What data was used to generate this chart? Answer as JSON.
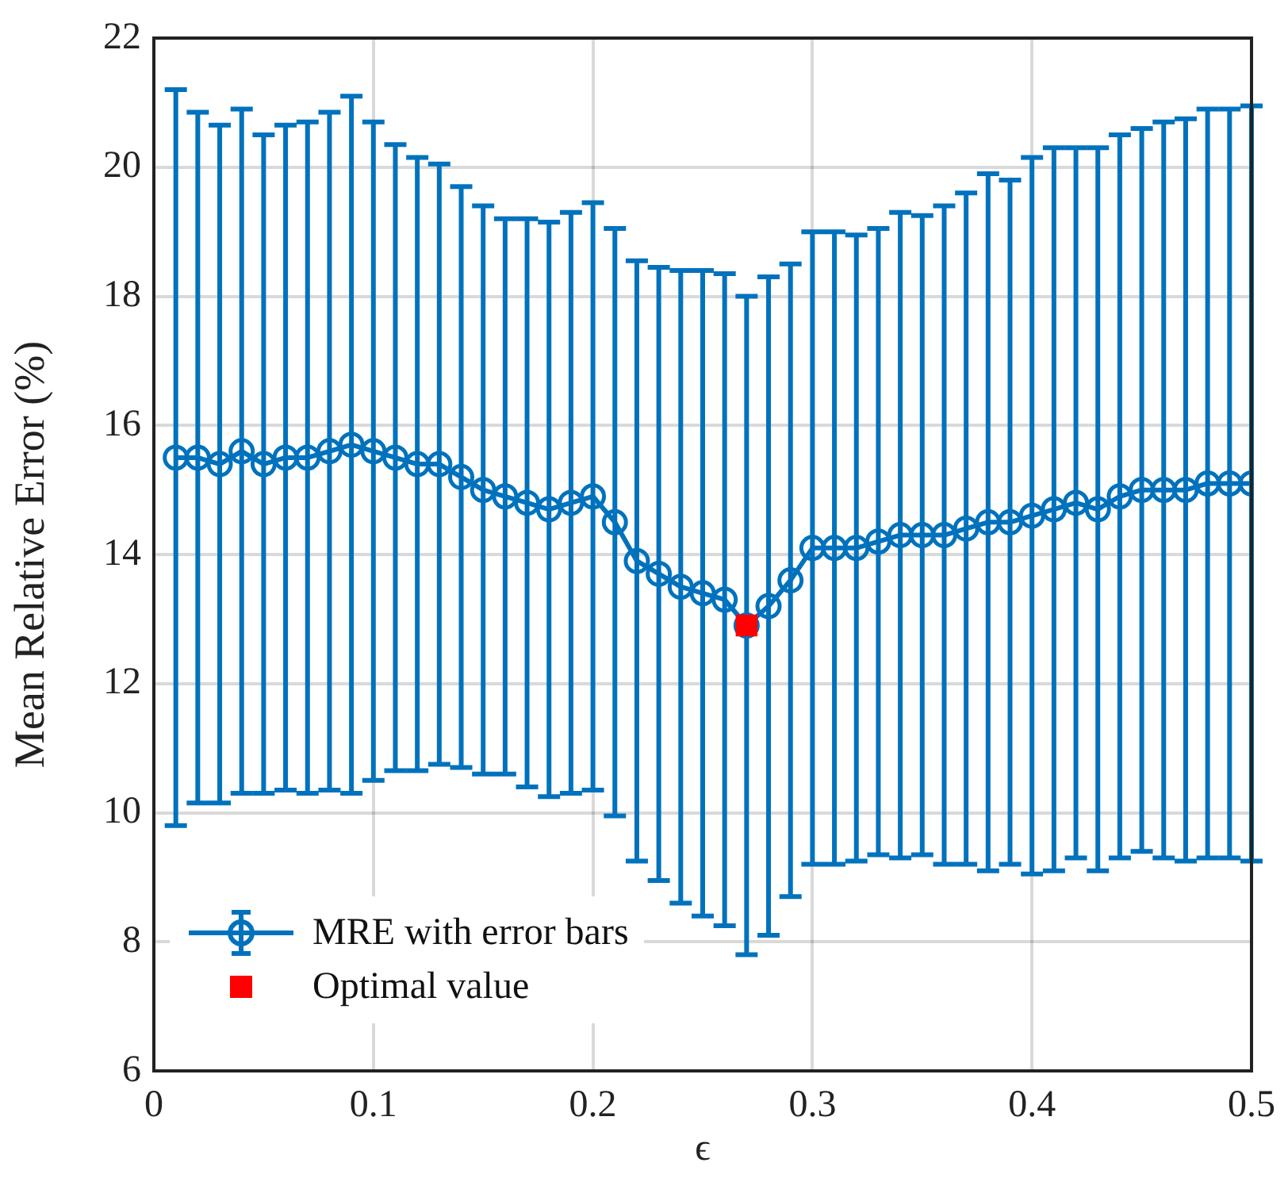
{
  "chart_data": {
    "type": "line",
    "xlabel": "ϵ",
    "ylabel": "Mean Relative Error (%)",
    "x": [
      0.01,
      0.02,
      0.03,
      0.04,
      0.05,
      0.06,
      0.07,
      0.08,
      0.09,
      0.1,
      0.11,
      0.12,
      0.13,
      0.14,
      0.15,
      0.16,
      0.17,
      0.18,
      0.19,
      0.2,
      0.21,
      0.22,
      0.23,
      0.24,
      0.25,
      0.26,
      0.27,
      0.28,
      0.29,
      0.3,
      0.31,
      0.32,
      0.33,
      0.34,
      0.35,
      0.36,
      0.37,
      0.38,
      0.39,
      0.4,
      0.41,
      0.42,
      0.43,
      0.44,
      0.45,
      0.46,
      0.47,
      0.48,
      0.49,
      0.5
    ],
    "series": [
      {
        "name": "MRE with error bars",
        "color": "#0072bd",
        "marker": "circle",
        "line_style": "solid",
        "values": [
          15.5,
          15.5,
          15.4,
          15.6,
          15.4,
          15.5,
          15.5,
          15.6,
          15.7,
          15.6,
          15.5,
          15.4,
          15.4,
          15.2,
          15.0,
          14.9,
          14.8,
          14.7,
          14.8,
          14.9,
          14.5,
          13.9,
          13.7,
          13.5,
          13.4,
          13.3,
          12.9,
          13.2,
          13.6,
          14.1,
          14.1,
          14.1,
          14.2,
          14.3,
          14.3,
          14.3,
          14.4,
          14.5,
          14.5,
          14.6,
          14.7,
          14.8,
          14.7,
          14.9,
          15.0,
          15.0,
          15.0,
          15.1,
          15.1,
          15.1
        ],
        "errors": [
          5.7,
          5.35,
          5.25,
          5.3,
          5.1,
          5.15,
          5.2,
          5.25,
          5.4,
          5.1,
          4.85,
          4.75,
          4.65,
          4.5,
          4.4,
          4.3,
          4.4,
          4.45,
          4.5,
          4.55,
          4.55,
          4.65,
          4.75,
          4.9,
          5.0,
          5.05,
          5.1,
          5.1,
          4.9,
          4.9,
          4.9,
          4.85,
          4.85,
          5.0,
          4.95,
          5.1,
          5.2,
          5.4,
          5.3,
          5.55,
          5.6,
          5.5,
          5.6,
          5.6,
          5.6,
          5.7,
          5.75,
          5.8,
          5.8,
          5.85
        ]
      },
      {
        "name": "Optimal value",
        "type": "scatter",
        "color": "#ff0000",
        "marker": "square",
        "x": [
          0.27
        ],
        "values": [
          12.9
        ]
      }
    ],
    "xlim": [
      0,
      0.5
    ],
    "xticks": [
      0,
      0.1,
      0.2,
      0.3,
      0.4,
      0.5
    ],
    "ylim": [
      6,
      22
    ],
    "yticks": [
      6,
      8,
      10,
      12,
      14,
      16,
      18,
      20,
      22
    ],
    "grid": true,
    "legend": "bottom left"
  }
}
